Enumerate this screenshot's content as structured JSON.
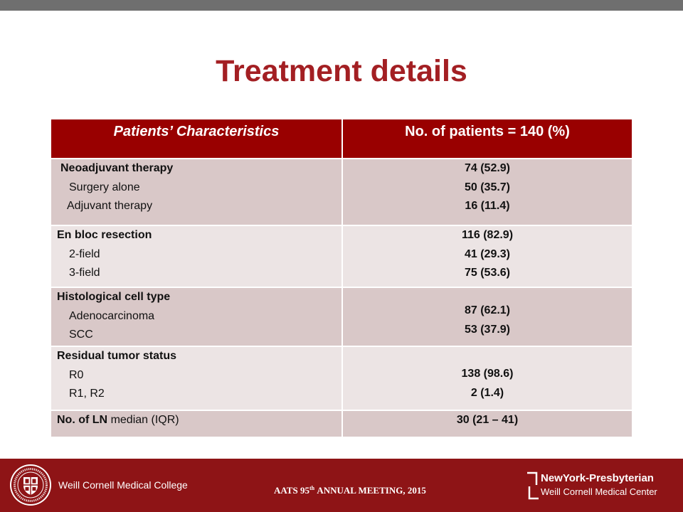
{
  "slide": {
    "title": "Treatment details"
  },
  "table": {
    "headers": [
      "Patients’ Characteristics",
      "No. of patients = 140 (%)"
    ],
    "rows": [
      {
        "label": "Neoadjuvant therapy",
        "sub": [
          "Surgery alone",
          "Adjuvant therapy"
        ],
        "values": [
          "74 (52.9)",
          "50 (35.7)",
          "16 (11.4)"
        ]
      },
      {
        "label": "En bloc resection",
        "sub": [
          "2-field",
          "3-field"
        ],
        "values": [
          "116 (82.9)",
          "41 (29.3)",
          "75 (53.6)"
        ]
      },
      {
        "label": "Histological cell type",
        "sub": [
          "Adenocarcinoma",
          "SCC"
        ],
        "values": [
          "87 (62.1)",
          "53 (37.9)"
        ]
      },
      {
        "label": "Residual tumor status",
        "sub": [
          "R0",
          "R1, R2"
        ],
        "values": [
          "138 (98.6)",
          "2 (1.4)"
        ]
      },
      {
        "label": "No. of LN",
        "label_suffix": "median (IQR)",
        "values": [
          "30 (21 – 41)"
        ]
      }
    ]
  },
  "footer": {
    "left_org": "Weill Cornell Medical College",
    "meeting": {
      "before": "AATS 95",
      "superscript": "th",
      "after": "ANNUAL MEETING, 2015"
    },
    "right_org_line1": "NewYork-Presbyterian",
    "right_org_line2": "Weill Cornell Medical Center"
  },
  "colors": {
    "title": "#a31f23",
    "table_header": "#990000",
    "row_dark": "#d9c8c8",
    "row_light": "#ece4e4",
    "footer": "#8e1416",
    "top_bar": "#6f6f6f"
  }
}
